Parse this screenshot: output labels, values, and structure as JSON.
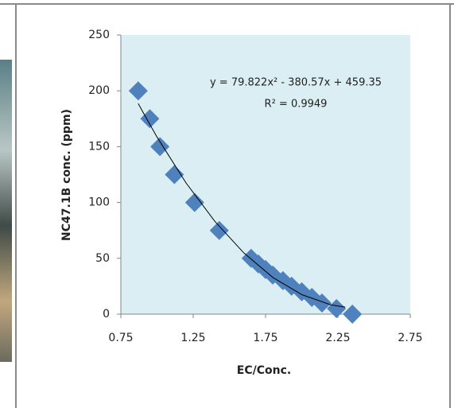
{
  "chart_data": {
    "type": "scatter",
    "x_label": "EC/Conc.",
    "y_label": "NC47.1B conc. (ppm)",
    "annotations": [
      "y = 79.822x² - 380.57x + 459.35",
      "R² = 0.9949"
    ],
    "x": [
      0.87,
      0.95,
      1.02,
      1.12,
      1.26,
      1.43,
      1.65,
      1.7,
      1.75,
      1.8,
      1.87,
      1.93,
      2.0,
      2.07,
      2.14,
      2.24,
      2.35
    ],
    "values": [
      200,
      175,
      150,
      125,
      100,
      75,
      50,
      45,
      40,
      35,
      30,
      25,
      20,
      15,
      10,
      5,
      0
    ],
    "color": "#4f81bd",
    "trendline": {
      "x": [
        0.87,
        0.9,
        1.0,
        1.2,
        1.4,
        1.6,
        1.8,
        2.0,
        2.2,
        2.3
      ],
      "values": [
        188.7,
        181.5,
        158.6,
        117.6,
        83.0,
        54.8,
        32.9,
        17.5,
        8.4,
        6.3
      ],
      "color": "#000000"
    },
    "xlim": [
      0.75,
      2.75
    ],
    "xticks": [
      0.75,
      1.25,
      1.75,
      2.25,
      2.75
    ],
    "ylim": [
      0,
      250
    ],
    "yticks": [
      0,
      50,
      100,
      150,
      200,
      250
    ],
    "plot_background": "#dbeef4"
  }
}
